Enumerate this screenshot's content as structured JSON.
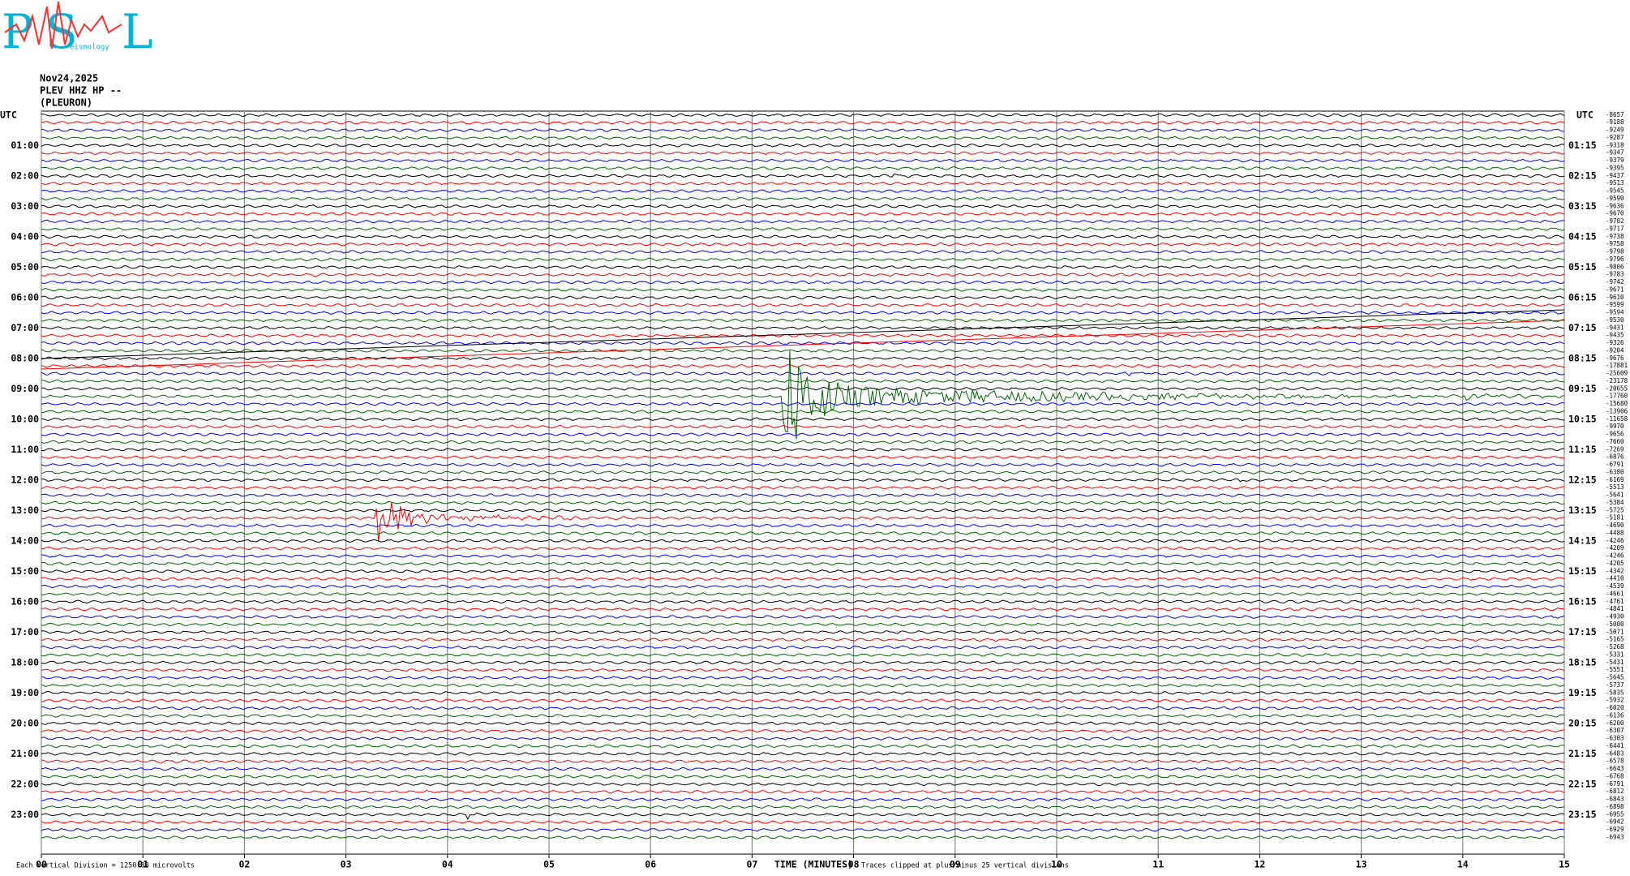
{
  "chart_data": {
    "type": "helicorder",
    "logo": {
      "letters": [
        "P",
        "S",
        "L"
      ],
      "caption": "eismology"
    },
    "header": [
      "Nov24,2025",
      "PLEV HHZ HP --",
      "(PLEURON)"
    ],
    "x_label": "TIME (MINUTES)",
    "scale_note": "Each Vertical Division = 1250.00 microvolts",
    "clip_note": "Traces clipped at plus/minus 25 vertical divisions",
    "xlim": [
      0,
      15
    ],
    "xticks": [
      {
        "value": 0,
        "label": "00"
      },
      {
        "value": 1,
        "label": "01"
      },
      {
        "value": 2,
        "label": "02"
      },
      {
        "value": 3,
        "label": "03"
      },
      {
        "value": 4,
        "label": "04"
      },
      {
        "value": 5,
        "label": "05"
      },
      {
        "value": 6,
        "label": "06"
      },
      {
        "value": 7,
        "label": "07"
      },
      {
        "value": 8,
        "label": "08"
      },
      {
        "value": 9,
        "label": "09"
      },
      10,
      11,
      12,
      13,
      14,
      15
    ],
    "grid": true,
    "trace_colors": [
      "#000000",
      "#ff0000",
      "#0000ff",
      "#006400"
    ],
    "left_labels": [
      "UTC",
      "01:00",
      "02:00",
      "03:00",
      "04:00",
      "05:00",
      "06:00",
      "07:00",
      "08:00",
      "09:00",
      "10:00",
      "11:00",
      "12:00",
      "13:00",
      "14:00",
      "15:00",
      "16:00",
      "17:00",
      "18:00",
      "19:00",
      "20:00",
      "21:00",
      "22:00",
      "23:00"
    ],
    "right_labels": [
      "UTC",
      "01:15",
      "02:15",
      "03:15",
      "04:15",
      "05:15",
      "06:15",
      "07:15",
      "08:15",
      "09:15",
      "10:15",
      "11:15",
      "12:15",
      "13:15",
      "14:15",
      "15:15",
      "16:15",
      "17:15",
      "18:15",
      "19:15",
      "20:15",
      "21:15",
      "22:15",
      "23:15"
    ],
    "values": [
      -8657,
      -9188,
      -9249,
      -9287,
      -9318,
      -9347,
      -9379,
      -9395,
      -9437,
      -9513,
      -9545,
      -9590,
      -9636,
      -9670,
      -9702,
      -9717,
      -9738,
      -9758,
      -9798,
      -9796,
      -9806,
      -9783,
      -9742,
      -9671,
      -9610,
      -9599,
      -9594,
      -9530,
      -9431,
      -9435,
      -9326,
      -9204,
      -9676,
      -17881,
      -25609,
      -23178,
      -20655,
      -17760,
      -15680,
      -13906,
      -11658,
      -9970,
      -9656,
      -7660,
      -7269,
      -6876,
      -6791,
      -6380,
      -6169,
      -5513,
      -5641,
      -5384,
      -5725,
      -5181,
      -4690,
      -4488,
      -4246,
      -4209,
      -4246,
      -4205,
      -4342,
      -4410,
      -4539,
      -4661,
      -4761,
      -4841,
      -4930,
      -5000,
      -5071,
      -5165,
      -5268,
      -5331,
      -5431,
      -5551,
      -5645,
      -5737,
      -5835,
      -5932,
      -6020,
      -6136,
      -6200,
      -6307,
      -6303,
      -6441,
      -6483,
      -6578,
      -6643,
      -6768,
      -6791,
      -6812,
      -6843,
      -6898,
      -6955,
      -6942,
      -6929,
      -6943
    ]
  }
}
